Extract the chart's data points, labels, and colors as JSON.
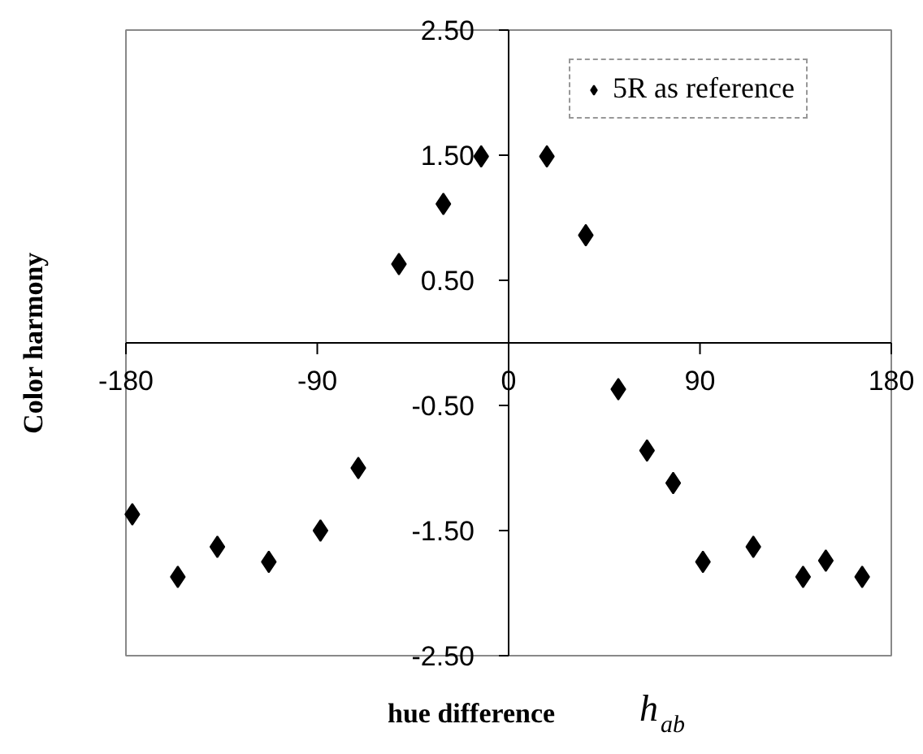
{
  "chart_data": {
    "type": "scatter",
    "xlabel": "hue difference h$_{ab}$",
    "ylabel": "Color harmony",
    "x": [
      -177,
      -155.6,
      -137,
      -112.8,
      -88.5,
      -70.7,
      -51.6,
      -30.7,
      -12.9,
      18,
      36.3,
      51.6,
      65.1,
      77.4,
      91.4,
      115.1,
      138.5,
      149.2,
      166.3
    ],
    "series": [
      {
        "name": "5R as reference",
        "color": "#000000",
        "values": [
          -1.37,
          -1.87,
          -1.63,
          -1.75,
          -1.5,
          -1.0,
          0.63,
          1.11,
          1.49,
          1.49,
          0.86,
          -0.37,
          -0.86,
          -1.12,
          -1.75,
          -1.63,
          -1.87,
          -1.74,
          -1.87
        ]
      }
    ],
    "xlim": [
      -180,
      180
    ],
    "ylim": [
      -2.5,
      2.5
    ],
    "xticks": [
      -180,
      -90,
      0,
      90,
      180
    ],
    "yticks": [
      {
        "value": -2.5,
        "label": "-2.50"
      },
      {
        "value": -1.5,
        "label": "-1.50"
      },
      {
        "value": -0.5,
        "label": "-0.50"
      },
      {
        "value": 0.5,
        "label": "0.50"
      },
      {
        "value": 1.5,
        "label": "1.50"
      },
      {
        "value": 2.5,
        "label": "2.50"
      }
    ],
    "grid": false,
    "legend": "top right",
    "marker": "diamond"
  }
}
